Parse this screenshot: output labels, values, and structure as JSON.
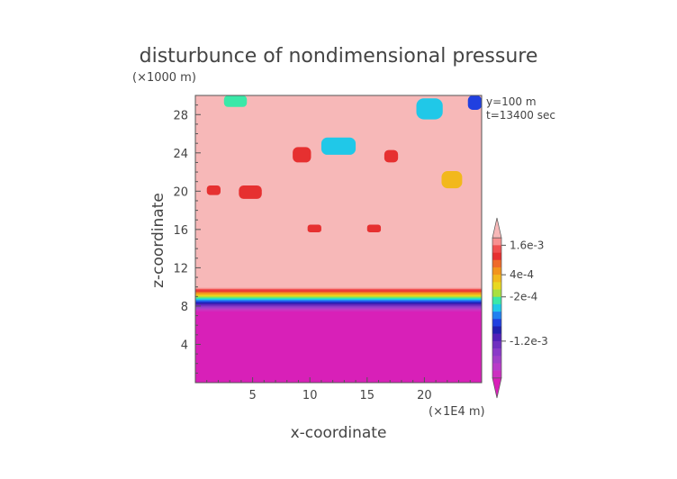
{
  "chart_data": {
    "type": "heatmap",
    "title": "disturbunce of nondimensional pressure",
    "xlabel": "x-coordinate",
    "ylabel": "z-coordinate",
    "x_unit": "(×1E4 m)",
    "z_unit": "(×1000 m)",
    "annotations": [
      "y=100 m",
      "t=13400 sec"
    ],
    "xlim": [
      0,
      25
    ],
    "ylim": [
      0,
      30
    ],
    "xticks": [
      5,
      10,
      15,
      20
    ],
    "yticks": [
      4,
      8,
      12,
      16,
      20,
      24,
      28
    ],
    "colorbar": {
      "labels": [
        "1.6e-3",
        "4e-4",
        "-2e-4",
        "-1.2e-3"
      ],
      "colors": [
        "#f7b8b8",
        "#f79090",
        "#f05050",
        "#e63030",
        "#ef6a2a",
        "#f2941c",
        "#f2b81c",
        "#e8d820",
        "#a8e040",
        "#3ae8a8",
        "#20c8e8",
        "#2080f0",
        "#2040e0",
        "#2020b0",
        "#5020b8",
        "#7030c0",
        "#8a3ac8",
        "#a040c8",
        "#b83cc8",
        "#cc30c0",
        "#d820b8"
      ]
    },
    "regions": [
      {
        "x": 0,
        "z": 0,
        "w": 25,
        "h": 8.5,
        "level": 20
      },
      {
        "x": 0,
        "z": 9,
        "w": 25,
        "h": 21,
        "level": 0
      },
      {
        "x": 11.0,
        "z": 23.8,
        "w": 3.0,
        "h": 1.8,
        "level": 10
      },
      {
        "x": 8.5,
        "z": 23.0,
        "w": 1.6,
        "h": 1.6,
        "level": 3
      },
      {
        "x": 16.5,
        "z": 23.0,
        "w": 1.2,
        "h": 1.3,
        "level": 3
      },
      {
        "x": 3.8,
        "z": 19.2,
        "w": 2.0,
        "h": 1.4,
        "level": 3
      },
      {
        "x": 1.0,
        "z": 19.6,
        "w": 1.2,
        "h": 1.0,
        "level": 3
      },
      {
        "x": 9.8,
        "z": 15.7,
        "w": 1.2,
        "h": 0.8,
        "level": 3
      },
      {
        "x": 15.0,
        "z": 15.7,
        "w": 1.2,
        "h": 0.8,
        "level": 3
      },
      {
        "x": 21.5,
        "z": 20.3,
        "w": 1.8,
        "h": 1.8,
        "level": 6
      },
      {
        "x": 19.3,
        "z": 27.5,
        "w": 2.3,
        "h": 2.2,
        "level": 10
      },
      {
        "x": 2.5,
        "z": 28.8,
        "w": 2.0,
        "h": 1.2,
        "level": 9
      },
      {
        "x": 23.8,
        "z": 28.5,
        "w": 1.2,
        "h": 1.5,
        "level": 12
      }
    ]
  }
}
